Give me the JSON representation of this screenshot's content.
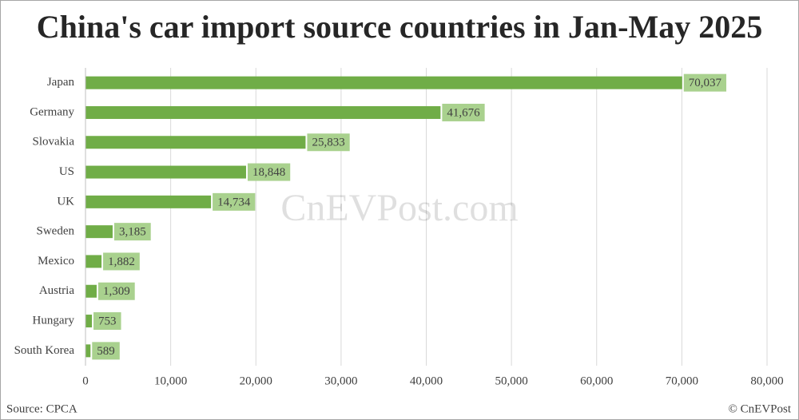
{
  "chart_data": {
    "type": "bar",
    "orientation": "horizontal",
    "title": "China's car import source countries in Jan-May 2025",
    "categories": [
      "Japan",
      "Germany",
      "Slovakia",
      "US",
      "UK",
      "Sweden",
      "Mexico",
      "Austria",
      "Hungary",
      "South Korea"
    ],
    "values": [
      70037,
      41676,
      25833,
      18848,
      14734,
      3185,
      1882,
      1309,
      753,
      589
    ],
    "value_labels": [
      "70,037",
      "41,676",
      "25,833",
      "18,848",
      "14,734",
      "3,185",
      "1,882",
      "1,309",
      "753",
      "589"
    ],
    "color": "#70ad47",
    "label_color": "#a9d18e",
    "xlim": [
      0,
      80000
    ],
    "xticks": [
      0,
      {
        "value": 10000,
        "label": "10,000"
      },
      {
        "value": 20000,
        "label": "20,000"
      },
      {
        "value": 30000,
        "label": "30,000"
      },
      {
        "value": 40000,
        "label": "40,000"
      },
      {
        "value": 50000,
        "label": "50,000"
      },
      {
        "value": 60000,
        "label": "60,000"
      },
      {
        "value": 70000,
        "label": "70,000"
      },
      {
        "value": 80000,
        "label": "80,000"
      }
    ],
    "grid": true,
    "source": "Source: CPCA",
    "copyright": "© CnEVPost",
    "watermark": "CnEVPost.com"
  }
}
